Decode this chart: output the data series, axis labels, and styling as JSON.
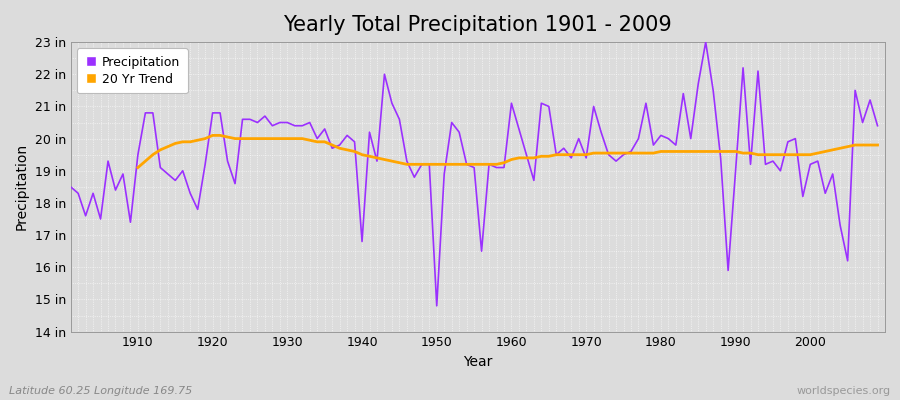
{
  "title": "Yearly Total Precipitation 1901 - 2009",
  "xlabel": "Year",
  "ylabel": "Precipitation",
  "subtitle": "Latitude 60.25 Longitude 169.75",
  "watermark": "worldspecies.org",
  "years": [
    1901,
    1902,
    1903,
    1904,
    1905,
    1906,
    1907,
    1908,
    1909,
    1910,
    1911,
    1912,
    1913,
    1914,
    1915,
    1916,
    1917,
    1918,
    1919,
    1920,
    1921,
    1922,
    1923,
    1924,
    1925,
    1926,
    1927,
    1928,
    1929,
    1930,
    1931,
    1932,
    1933,
    1934,
    1935,
    1936,
    1937,
    1938,
    1939,
    1940,
    1941,
    1942,
    1943,
    1944,
    1945,
    1946,
    1947,
    1948,
    1949,
    1950,
    1951,
    1952,
    1953,
    1954,
    1955,
    1956,
    1957,
    1958,
    1959,
    1960,
    1961,
    1962,
    1963,
    1964,
    1965,
    1966,
    1967,
    1968,
    1969,
    1970,
    1971,
    1972,
    1973,
    1974,
    1975,
    1976,
    1977,
    1978,
    1979,
    1980,
    1981,
    1982,
    1983,
    1984,
    1985,
    1986,
    1987,
    1988,
    1989,
    1990,
    1991,
    1992,
    1993,
    1994,
    1995,
    1996,
    1997,
    1998,
    1999,
    2000,
    2001,
    2002,
    2003,
    2004,
    2005,
    2006,
    2007,
    2008,
    2009
  ],
  "precip": [
    18.5,
    18.3,
    17.6,
    18.3,
    17.5,
    19.3,
    18.4,
    18.9,
    17.4,
    19.5,
    20.8,
    20.8,
    19.1,
    18.9,
    18.7,
    19.0,
    18.3,
    17.8,
    19.2,
    20.8,
    20.8,
    19.3,
    18.6,
    20.6,
    20.6,
    20.5,
    20.7,
    20.4,
    20.5,
    20.5,
    20.4,
    20.4,
    20.5,
    20.0,
    20.3,
    19.7,
    19.8,
    20.1,
    19.9,
    16.8,
    20.2,
    19.3,
    22.0,
    21.1,
    20.6,
    19.3,
    18.8,
    19.2,
    19.2,
    14.8,
    18.9,
    20.5,
    20.2,
    19.2,
    19.1,
    16.5,
    19.2,
    19.1,
    19.1,
    21.1,
    20.3,
    19.5,
    18.7,
    21.1,
    21.0,
    19.5,
    19.7,
    19.4,
    20.0,
    19.4,
    21.0,
    20.2,
    19.5,
    19.3,
    19.5,
    19.6,
    20.0,
    21.1,
    19.8,
    20.1,
    20.0,
    19.8,
    21.4,
    20.0,
    21.7,
    23.0,
    21.5,
    19.4,
    15.9,
    19.0,
    22.2,
    19.2,
    22.1,
    19.2,
    19.3,
    19.0,
    19.9,
    20.0,
    18.2,
    19.2,
    19.3,
    18.3,
    18.9,
    17.3,
    16.2,
    21.5,
    20.5,
    21.2,
    20.4
  ],
  "trend_years": [
    1910,
    1911,
    1912,
    1913,
    1914,
    1915,
    1916,
    1917,
    1918,
    1919,
    1920,
    1921,
    1922,
    1923,
    1924,
    1925,
    1926,
    1927,
    1928,
    1929,
    1930,
    1931,
    1932,
    1933,
    1934,
    1935,
    1936,
    1937,
    1938,
    1939,
    1940,
    1941,
    1942,
    1943,
    1944,
    1945,
    1946,
    1947,
    1948,
    1949,
    1950,
    1951,
    1952,
    1953,
    1954,
    1955,
    1956,
    1957,
    1958,
    1959,
    1960,
    1961,
    1962,
    1963,
    1964,
    1965,
    1966,
    1967,
    1968,
    1969,
    1970,
    1971,
    1972,
    1973,
    1974,
    1975,
    1976,
    1977,
    1978,
    1979,
    1980,
    1981,
    1982,
    1983,
    1984,
    1985,
    1986,
    1987,
    1988,
    1989,
    1990,
    1991,
    1992,
    1993,
    1994,
    1995,
    1996,
    1997,
    1998,
    1999,
    2000,
    2001,
    2002,
    2003,
    2004,
    2005,
    2006,
    2007,
    2008,
    2009
  ],
  "trend": [
    19.1,
    19.3,
    19.5,
    19.65,
    19.75,
    19.85,
    19.9,
    19.9,
    19.95,
    20.0,
    20.1,
    20.1,
    20.05,
    20.0,
    20.0,
    20.0,
    20.0,
    20.0,
    20.0,
    20.0,
    20.0,
    20.0,
    20.0,
    19.95,
    19.9,
    19.9,
    19.8,
    19.7,
    19.65,
    19.6,
    19.5,
    19.45,
    19.4,
    19.35,
    19.3,
    19.25,
    19.2,
    19.2,
    19.2,
    19.2,
    19.2,
    19.2,
    19.2,
    19.2,
    19.2,
    19.2,
    19.2,
    19.2,
    19.2,
    19.25,
    19.35,
    19.4,
    19.4,
    19.4,
    19.45,
    19.45,
    19.5,
    19.5,
    19.5,
    19.5,
    19.5,
    19.55,
    19.55,
    19.55,
    19.55,
    19.55,
    19.55,
    19.55,
    19.55,
    19.55,
    19.6,
    19.6,
    19.6,
    19.6,
    19.6,
    19.6,
    19.6,
    19.6,
    19.6,
    19.6,
    19.6,
    19.55,
    19.55,
    19.5,
    19.5,
    19.5,
    19.5,
    19.5,
    19.5,
    19.5,
    19.5,
    19.55,
    19.6,
    19.65,
    19.7,
    19.75,
    19.8,
    19.8,
    19.8,
    19.8
  ],
  "precip_color": "#9B30FF",
  "trend_color": "#FFA500",
  "bg_color": "#DCDCDC",
  "plot_bg_color": "#DCDCDC",
  "grid_color": "#ffffff",
  "ylim": [
    14,
    23
  ],
  "yticks": [
    14,
    15,
    16,
    17,
    18,
    19,
    20,
    21,
    22,
    23
  ],
  "ytick_labels": [
    "14 in",
    "15 in",
    "16 in",
    "17 in",
    "18 in",
    "19 in",
    "20 in",
    "21 in",
    "22 in",
    "23 in"
  ],
  "xlim_start": 1901,
  "xlim_end": 2010,
  "xticks": [
    1910,
    1920,
    1930,
    1940,
    1950,
    1960,
    1970,
    1980,
    1990,
    2000
  ],
  "title_fontsize": 15,
  "axis_fontsize": 10,
  "tick_fontsize": 9,
  "legend_labels": [
    "Precipitation",
    "20 Yr Trend"
  ]
}
